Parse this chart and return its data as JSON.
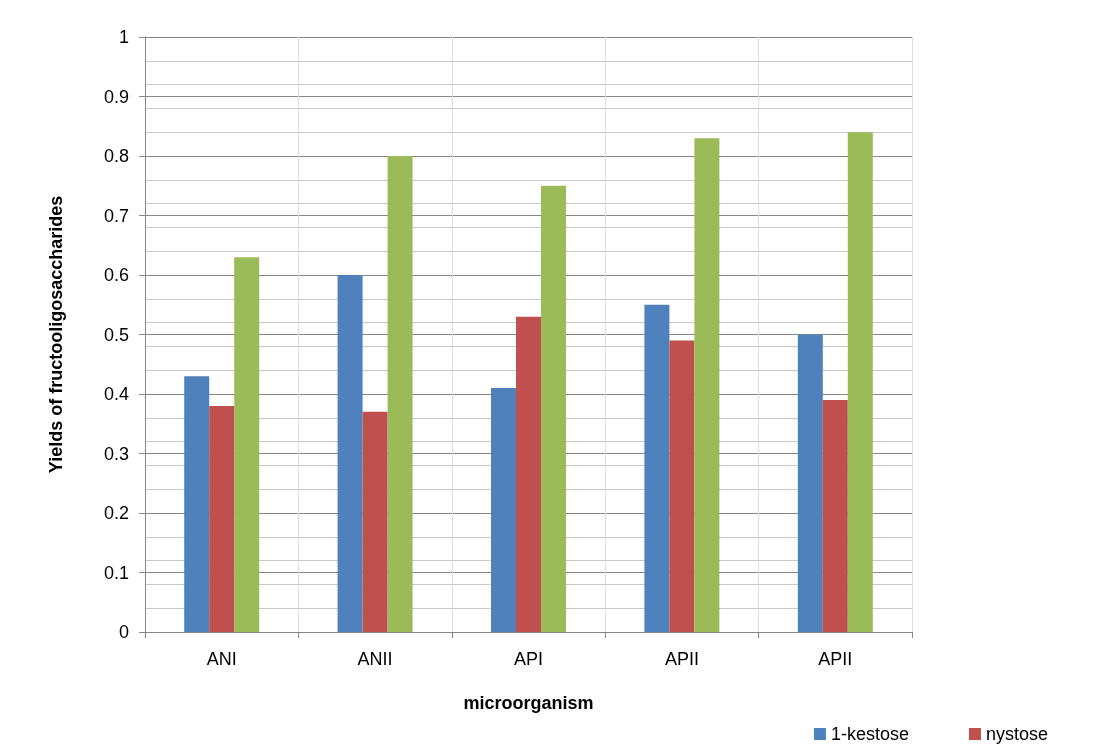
{
  "chart_data": {
    "type": "bar",
    "xlabel": "microorganism",
    "ylabel": "Yields of fructooligosaccharides",
    "categories": [
      "ANI",
      "ANII",
      "API",
      "APII",
      "APII"
    ],
    "series": [
      {
        "name": "1-kestose",
        "color": "#4f81bd",
        "values": [
          0.43,
          0.6,
          0.41,
          0.55,
          0.5
        ]
      },
      {
        "name": "nystose",
        "color": "#c0504d",
        "values": [
          0.38,
          0.37,
          0.53,
          0.49,
          0.39
        ]
      },
      {
        "color": "#9bbb59",
        "values": [
          0.63,
          0.8,
          0.75,
          0.83,
          0.84
        ]
      }
    ],
    "ylim": [
      0,
      1
    ],
    "yticks": [
      0,
      0.1,
      0.2,
      0.3,
      0.4,
      0.5,
      0.6,
      0.7,
      0.8,
      0.9,
      1
    ],
    "grid": true,
    "legend": "bottom right"
  }
}
